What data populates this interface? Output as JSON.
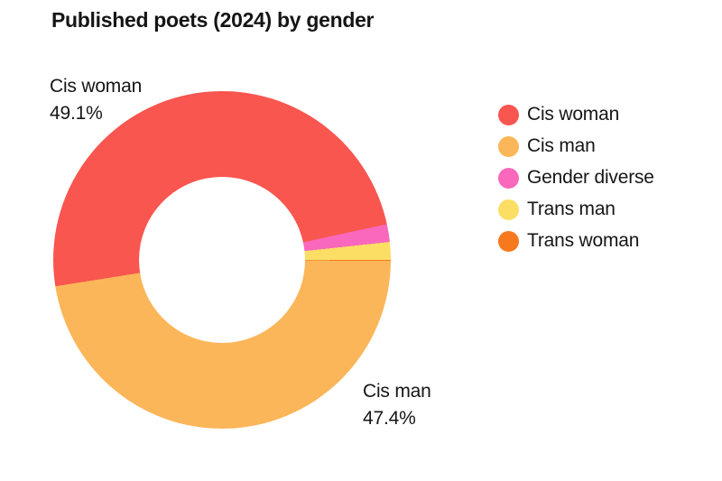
{
  "title": "Published poets (2024) by gender",
  "colors": {
    "text": "#161616",
    "background": "#ffffff",
    "cis_woman": "#F8564F",
    "cis_man": "#FBB659",
    "gender_diverse": "#F968BC",
    "trans_man": "#FCDE65",
    "trans_woman": "#F6791D"
  },
  "chart_data": {
    "type": "pie",
    "subtype": "donut",
    "title": "Published poets (2024) by gender",
    "inner_radius_ratio": 0.49,
    "start_angle_deg": 261,
    "clockwise": true,
    "draw_order": [
      0,
      2,
      3,
      4,
      1
    ],
    "legend_position": "right",
    "slices": [
      {
        "label": "Cis woman",
        "value": 49.1,
        "display": "49.1%",
        "color": "#F8564F"
      },
      {
        "label": "Cis man",
        "value": 47.4,
        "display": "47.4%",
        "color": "#FBB659"
      },
      {
        "label": "Gender diverse",
        "value": 1.7,
        "display": "",
        "color": "#F968BC"
      },
      {
        "label": "Trans man",
        "value": 1.7,
        "display": "",
        "color": "#FCDE65"
      },
      {
        "label": "Trans woman",
        "value": 0.1,
        "display": "",
        "color": "#F6791D"
      }
    ],
    "annotations": [
      {
        "label": "Cis woman",
        "value_text": "49.1%",
        "position": "top-left"
      },
      {
        "label": "Cis man",
        "value_text": "47.4%",
        "position": "bottom-right"
      }
    ]
  },
  "callouts": {
    "cis_woman": {
      "name": "Cis woman",
      "pct": "49.1%"
    },
    "cis_man": {
      "name": "Cis man",
      "pct": "47.4%"
    }
  },
  "legend": {
    "items": [
      {
        "label": "Cis woman",
        "color": "#F8564F"
      },
      {
        "label": "Cis man",
        "color": "#FBB659"
      },
      {
        "label": "Gender diverse",
        "color": "#F968BC"
      },
      {
        "label": "Trans man",
        "color": "#FCDE65"
      },
      {
        "label": "Trans woman",
        "color": "#F6791D"
      }
    ]
  }
}
